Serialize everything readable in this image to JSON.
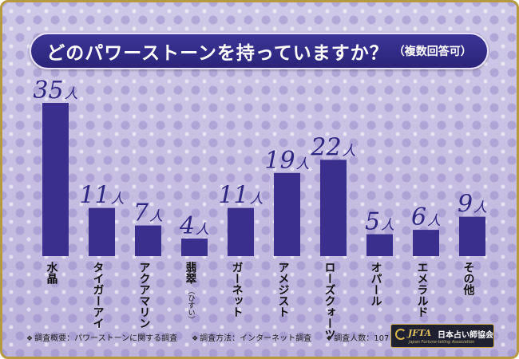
{
  "title": "どのパワーストーンを持っていますか？",
  "subtitle": "（複数回答可）",
  "value_unit": "人",
  "chart_data": {
    "type": "bar",
    "title": "どのパワーストーンを持っていますか？（複数回答可）",
    "categories": [
      "水晶",
      "タイガーアイ",
      "アクアマリン",
      "翡翠",
      "ガーネット",
      "アメジスト",
      "ローズクォーツ",
      "オパール",
      "エメラルド",
      "その他"
    ],
    "category_notes": [
      "",
      "",
      "",
      "（ひすい）",
      "",
      "",
      "",
      "",
      "",
      ""
    ],
    "values": [
      35,
      11,
      7,
      4,
      11,
      19,
      22,
      5,
      6,
      9
    ],
    "ylim": [
      0,
      35
    ],
    "grid": false,
    "legend": "none",
    "bar_color": "#3b2f8e"
  },
  "footnotes": [
    {
      "mark": "❖",
      "text": "調査概要：パワーストーンに関する調査"
    },
    {
      "mark": "❖",
      "text": "調査方法：インターネット調査"
    },
    {
      "mark": "❖",
      "text": "調査人数：107 人"
    }
  ],
  "logo": {
    "abbr": "JFTA",
    "name": "日本占い師協会",
    "english": "Japan Fortune-telling Association"
  }
}
